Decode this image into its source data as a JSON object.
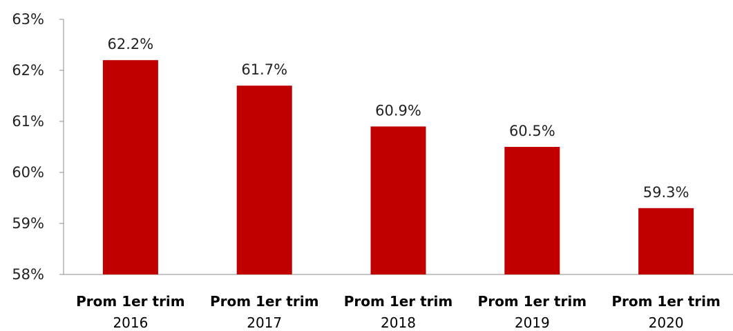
{
  "chart_data": {
    "type": "bar",
    "categories": [
      {
        "line1": "Prom 1er trim",
        "line2": "2016"
      },
      {
        "line1": "Prom 1er trim",
        "line2": "2017"
      },
      {
        "line1": "Prom 1er trim",
        "line2": "2018"
      },
      {
        "line1": "Prom 1er trim",
        "line2": "2019"
      },
      {
        "line1": "Prom 1er trim",
        "line2": "2020"
      }
    ],
    "values": [
      62.2,
      61.7,
      60.9,
      60.5,
      59.3
    ],
    "data_labels": [
      "62.2%",
      "61.7%",
      "60.9%",
      "60.5%",
      "59.3%"
    ],
    "ylim": [
      58,
      63
    ],
    "yticks": [
      58,
      59,
      60,
      61,
      62,
      63
    ],
    "ytick_labels": [
      "58%",
      "59%",
      "60%",
      "61%",
      "62%",
      "63%"
    ],
    "title": "",
    "xlabel": "",
    "ylabel": "",
    "grid": false,
    "legend": "none",
    "bar_color": "#c00000"
  }
}
